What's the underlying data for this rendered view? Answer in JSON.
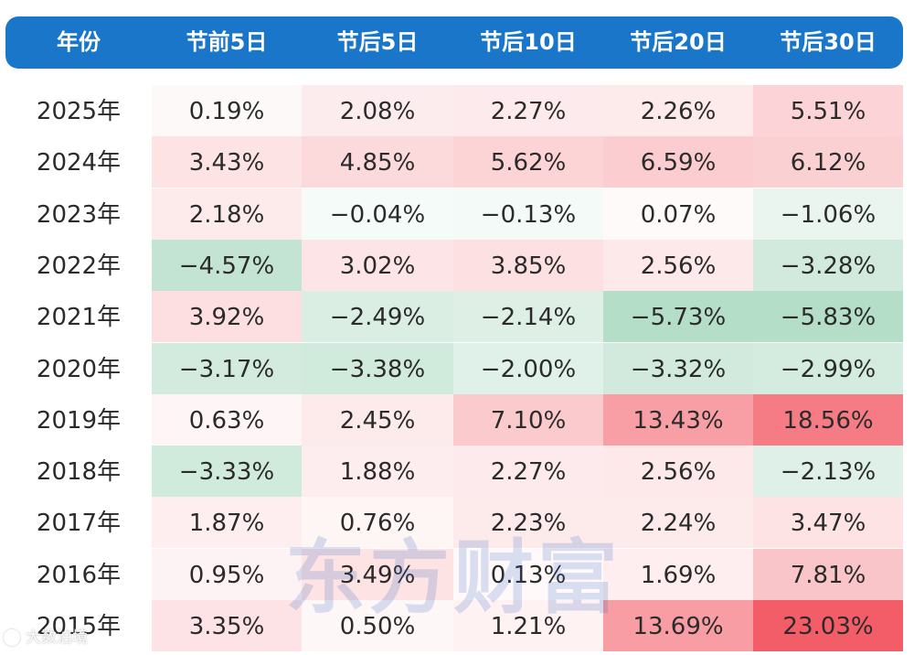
{
  "chart_data": {
    "type": "table",
    "columns": [
      "年份",
      "节前5日",
      "节后5日",
      "节后10日",
      "节后20日",
      "节后30日"
    ],
    "rows": [
      {
        "year": "2025年",
        "values": [
          "0.19%",
          "2.08%",
          "2.27%",
          "2.26%",
          "5.51%"
        ]
      },
      {
        "year": "2024年",
        "values": [
          "3.43%",
          "4.85%",
          "5.62%",
          "6.59%",
          "6.12%"
        ]
      },
      {
        "year": "2023年",
        "values": [
          "2.18%",
          "−0.04%",
          "−0.13%",
          "0.07%",
          "−1.06%"
        ]
      },
      {
        "year": "2022年",
        "values": [
          "−4.57%",
          "3.02%",
          "3.85%",
          "2.56%",
          "−3.28%"
        ]
      },
      {
        "year": "2021年",
        "values": [
          "3.92%",
          "−2.49%",
          "−2.14%",
          "−5.73%",
          "−5.83%"
        ]
      },
      {
        "year": "2020年",
        "values": [
          "−3.17%",
          "−3.38%",
          "−2.00%",
          "−3.32%",
          "−2.99%"
        ]
      },
      {
        "year": "2019年",
        "values": [
          "0.63%",
          "2.45%",
          "7.10%",
          "13.43%",
          "18.56%"
        ]
      },
      {
        "year": "2018年",
        "values": [
          "−3.33%",
          "1.88%",
          "2.27%",
          "2.56%",
          "−2.13%"
        ]
      },
      {
        "year": "2017年",
        "values": [
          "1.87%",
          "0.76%",
          "2.23%",
          "2.24%",
          "3.47%"
        ]
      },
      {
        "year": "2016年",
        "values": [
          "0.95%",
          "3.49%",
          "0.13%",
          "1.69%",
          "7.81%"
        ]
      },
      {
        "year": "2015年",
        "values": [
          "3.35%",
          "0.50%",
          "1.21%",
          "13.69%",
          "23.03%"
        ]
      }
    ],
    "colors": {
      "header_bg": "#1976c9",
      "header_text": "#ffffff",
      "positive": "#f25a64",
      "negative": "#64b98c"
    }
  },
  "watermark": "东方财富",
  "stamp": "大数泊境"
}
